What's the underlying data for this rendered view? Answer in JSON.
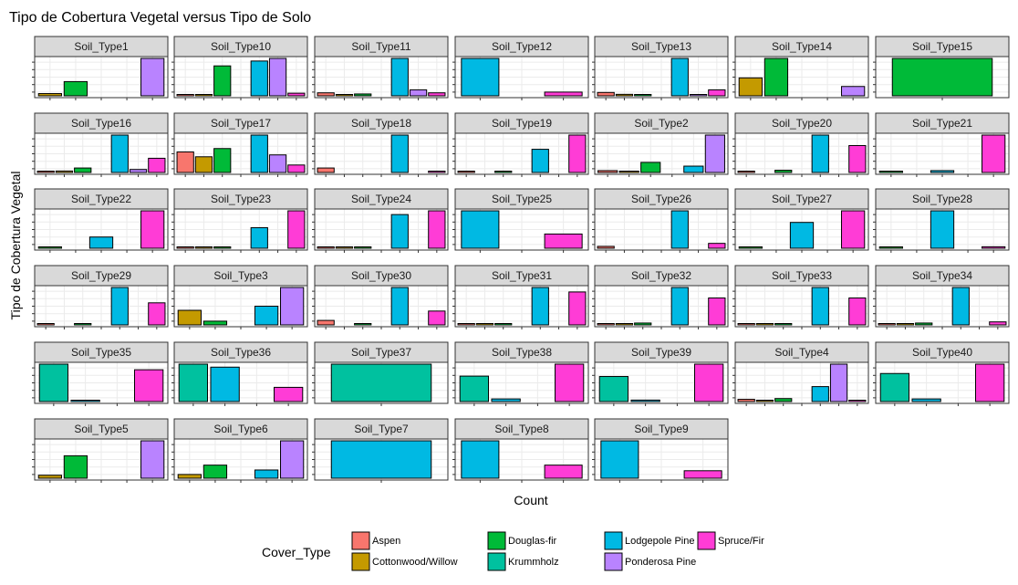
{
  "chart_data": {
    "type": "bar",
    "title": "Tipo de Cobertura Vegetal versus Tipo de Solo",
    "xlabel": "Count",
    "ylabel": "Tipo de Cobertura Vegetal",
    "legend": {
      "title": "Cover_Type",
      "placement": "bottom",
      "entries": [
        {
          "label": "Aspen",
          "color": "#F8766D"
        },
        {
          "label": "Cottonwood/Willow",
          "color": "#C49A00"
        },
        {
          "label": "Douglas-fir",
          "color": "#00BA38"
        },
        {
          "label": "Krummholz",
          "color": "#00C19F"
        },
        {
          "label": "Lodgepole Pine",
          "color": "#00B9E3"
        },
        {
          "label": "Ponderosa Pine",
          "color": "#B983FF"
        },
        {
          "label": "Spruce/Fir",
          "color": "#FF3CD6"
        }
      ]
    },
    "grid": true,
    "facet_scales": "free",
    "panels": [
      {
        "name": "Soil_Type1",
        "bars": [
          {
            "cat": 2,
            "value": 0.06
          },
          {
            "cat": 3,
            "value": 0.38
          },
          {
            "cat": 6,
            "value": 1.0
          }
        ]
      },
      {
        "name": "Soil_Type10",
        "bars": [
          {
            "cat": 1,
            "value": 0.02
          },
          {
            "cat": 2,
            "value": 0.02
          },
          {
            "cat": 3,
            "value": 0.8
          },
          {
            "cat": 5,
            "value": 0.93
          },
          {
            "cat": 6,
            "value": 1.0
          },
          {
            "cat": 7,
            "value": 0.07
          }
        ]
      },
      {
        "name": "Soil_Type11",
        "bars": [
          {
            "cat": 1,
            "value": 0.08
          },
          {
            "cat": 2,
            "value": 0.02
          },
          {
            "cat": 3,
            "value": 0.05
          },
          {
            "cat": 5,
            "value": 1.0
          },
          {
            "cat": 6,
            "value": 0.16
          },
          {
            "cat": 7,
            "value": 0.08
          }
        ]
      },
      {
        "name": "Soil_Type12",
        "bars": [
          {
            "cat": 5,
            "value": 1.0
          },
          {
            "cat": 7,
            "value": 0.1
          }
        ]
      },
      {
        "name": "Soil_Type13",
        "bars": [
          {
            "cat": 1,
            "value": 0.09
          },
          {
            "cat": 2,
            "value": 0.04
          },
          {
            "cat": 3,
            "value": 0.01
          },
          {
            "cat": 5,
            "value": 1.0
          },
          {
            "cat": 6,
            "value": 0.01
          },
          {
            "cat": 7,
            "value": 0.16
          }
        ]
      },
      {
        "name": "Soil_Type14",
        "bars": [
          {
            "cat": 2,
            "value": 0.48
          },
          {
            "cat": 3,
            "value": 1.0
          },
          {
            "cat": 6,
            "value": 0.25
          }
        ]
      },
      {
        "name": "Soil_Type15",
        "bars": [
          {
            "cat": 3,
            "value": 1.0
          }
        ]
      },
      {
        "name": "Soil_Type16",
        "bars": [
          {
            "cat": 1,
            "value": 0.02
          },
          {
            "cat": 2,
            "value": 0.04
          },
          {
            "cat": 3,
            "value": 0.12
          },
          {
            "cat": 5,
            "value": 1.0
          },
          {
            "cat": 6,
            "value": 0.08
          },
          {
            "cat": 7,
            "value": 0.38
          }
        ]
      },
      {
        "name": "Soil_Type17",
        "bars": [
          {
            "cat": 1,
            "value": 0.55
          },
          {
            "cat": 2,
            "value": 0.42
          },
          {
            "cat": 3,
            "value": 0.64
          },
          {
            "cat": 5,
            "value": 1.0
          },
          {
            "cat": 6,
            "value": 0.47
          },
          {
            "cat": 7,
            "value": 0.2
          }
        ]
      },
      {
        "name": "Soil_Type18",
        "bars": [
          {
            "cat": 1,
            "value": 0.12
          },
          {
            "cat": 5,
            "value": 1.0
          },
          {
            "cat": 7,
            "value": 0.03
          }
        ]
      },
      {
        "name": "Soil_Type19",
        "bars": [
          {
            "cat": 1,
            "value": 0.02
          },
          {
            "cat": 3,
            "value": 0.01
          },
          {
            "cat": 5,
            "value": 0.62
          },
          {
            "cat": 7,
            "value": 1.0
          }
        ]
      },
      {
        "name": "Soil_Type2",
        "bars": [
          {
            "cat": 1,
            "value": 0.05
          },
          {
            "cat": 2,
            "value": 0.02
          },
          {
            "cat": 3,
            "value": 0.27
          },
          {
            "cat": 5,
            "value": 0.17
          },
          {
            "cat": 6,
            "value": 1.0
          }
        ]
      },
      {
        "name": "Soil_Type20",
        "bars": [
          {
            "cat": 1,
            "value": 0.02
          },
          {
            "cat": 3,
            "value": 0.06
          },
          {
            "cat": 5,
            "value": 1.0
          },
          {
            "cat": 7,
            "value": 0.72
          }
        ]
      },
      {
        "name": "Soil_Type21",
        "bars": [
          {
            "cat": 3,
            "value": 0.03
          },
          {
            "cat": 5,
            "value": 0.05
          },
          {
            "cat": 7,
            "value": 1.0
          }
        ]
      },
      {
        "name": "Soil_Type22",
        "bars": [
          {
            "cat": 3,
            "value": 0.01
          },
          {
            "cat": 5,
            "value": 0.3
          },
          {
            "cat": 7,
            "value": 1.0
          }
        ]
      },
      {
        "name": "Soil_Type23",
        "bars": [
          {
            "cat": 1,
            "value": 0.02
          },
          {
            "cat": 2,
            "value": 0.01
          },
          {
            "cat": 3,
            "value": 0.02
          },
          {
            "cat": 5,
            "value": 0.55
          },
          {
            "cat": 7,
            "value": 1.0
          }
        ]
      },
      {
        "name": "Soil_Type24",
        "bars": [
          {
            "cat": 1,
            "value": 0.01
          },
          {
            "cat": 2,
            "value": 0.01
          },
          {
            "cat": 3,
            "value": 0.02
          },
          {
            "cat": 5,
            "value": 0.9
          },
          {
            "cat": 7,
            "value": 1.0
          }
        ]
      },
      {
        "name": "Soil_Type25",
        "bars": [
          {
            "cat": 5,
            "value": 1.0
          },
          {
            "cat": 7,
            "value": 0.38
          }
        ]
      },
      {
        "name": "Soil_Type26",
        "bars": [
          {
            "cat": 1,
            "value": 0.05
          },
          {
            "cat": 5,
            "value": 1.0
          },
          {
            "cat": 7,
            "value": 0.13
          }
        ]
      },
      {
        "name": "Soil_Type27",
        "bars": [
          {
            "cat": 3,
            "value": 0.03
          },
          {
            "cat": 5,
            "value": 0.69
          },
          {
            "cat": 7,
            "value": 1.0
          }
        ]
      },
      {
        "name": "Soil_Type28",
        "bars": [
          {
            "cat": 3,
            "value": 0.01
          },
          {
            "cat": 5,
            "value": 1.0
          },
          {
            "cat": 7,
            "value": 0.04
          }
        ]
      },
      {
        "name": "Soil_Type29",
        "bars": [
          {
            "cat": 1,
            "value": 0.02
          },
          {
            "cat": 3,
            "value": 0.02
          },
          {
            "cat": 5,
            "value": 1.0
          },
          {
            "cat": 7,
            "value": 0.59
          }
        ]
      },
      {
        "name": "Soil_Type3",
        "bars": [
          {
            "cat": 2,
            "value": 0.39
          },
          {
            "cat": 3,
            "value": 0.1
          },
          {
            "cat": 5,
            "value": 0.5
          },
          {
            "cat": 6,
            "value": 1.0
          }
        ]
      },
      {
        "name": "Soil_Type30",
        "bars": [
          {
            "cat": 1,
            "value": 0.12
          },
          {
            "cat": 3,
            "value": 0.02
          },
          {
            "cat": 5,
            "value": 1.0
          },
          {
            "cat": 7,
            "value": 0.37
          }
        ]
      },
      {
        "name": "Soil_Type31",
        "bars": [
          {
            "cat": 1,
            "value": 0.03
          },
          {
            "cat": 2,
            "value": 0.01
          },
          {
            "cat": 3,
            "value": 0.02
          },
          {
            "cat": 5,
            "value": 1.0
          },
          {
            "cat": 7,
            "value": 0.88
          }
        ]
      },
      {
        "name": "Soil_Type32",
        "bars": [
          {
            "cat": 1,
            "value": 0.02
          },
          {
            "cat": 2,
            "value": 0.01
          },
          {
            "cat": 3,
            "value": 0.05
          },
          {
            "cat": 5,
            "value": 1.0
          },
          {
            "cat": 7,
            "value": 0.72
          }
        ]
      },
      {
        "name": "Soil_Type33",
        "bars": [
          {
            "cat": 1,
            "value": 0.02
          },
          {
            "cat": 2,
            "value": 0.02
          },
          {
            "cat": 3,
            "value": 0.02
          },
          {
            "cat": 5,
            "value": 1.0
          },
          {
            "cat": 7,
            "value": 0.72
          }
        ]
      },
      {
        "name": "Soil_Type34",
        "bars": [
          {
            "cat": 1,
            "value": 0.01
          },
          {
            "cat": 2,
            "value": 0.01
          },
          {
            "cat": 3,
            "value": 0.05
          },
          {
            "cat": 5,
            "value": 1.0
          },
          {
            "cat": 7,
            "value": 0.08
          }
        ]
      },
      {
        "name": "Soil_Type35",
        "bars": [
          {
            "cat": 4,
            "value": 1.0
          },
          {
            "cat": 5,
            "value": 0.02
          },
          {
            "cat": 7,
            "value": 0.85
          }
        ]
      },
      {
        "name": "Soil_Type36",
        "bars": [
          {
            "cat": 4,
            "value": 1.0
          },
          {
            "cat": 5,
            "value": 0.92
          },
          {
            "cat": 7,
            "value": 0.38
          }
        ]
      },
      {
        "name": "Soil_Type37",
        "bars": [
          {
            "cat": 4,
            "value": 1.0
          }
        ]
      },
      {
        "name": "Soil_Type38",
        "bars": [
          {
            "cat": 4,
            "value": 0.68
          },
          {
            "cat": 5,
            "value": 0.07
          },
          {
            "cat": 7,
            "value": 1.0
          }
        ]
      },
      {
        "name": "Soil_Type39",
        "bars": [
          {
            "cat": 4,
            "value": 0.67
          },
          {
            "cat": 5,
            "value": 0.04
          },
          {
            "cat": 7,
            "value": 1.0
          }
        ]
      },
      {
        "name": "Soil_Type4",
        "bars": [
          {
            "cat": 1,
            "value": 0.06
          },
          {
            "cat": 2,
            "value": 0.02
          },
          {
            "cat": 3,
            "value": 0.08
          },
          {
            "cat": 5,
            "value": 0.4
          },
          {
            "cat": 6,
            "value": 1.0
          },
          {
            "cat": 7,
            "value": 0.02
          }
        ]
      },
      {
        "name": "Soil_Type40",
        "bars": [
          {
            "cat": 4,
            "value": 0.75
          },
          {
            "cat": 5,
            "value": 0.07
          },
          {
            "cat": 7,
            "value": 1.0
          }
        ]
      },
      {
        "name": "Soil_Type5",
        "bars": [
          {
            "cat": 2,
            "value": 0.08
          },
          {
            "cat": 3,
            "value": 0.6
          },
          {
            "cat": 6,
            "value": 1.0
          }
        ]
      },
      {
        "name": "Soil_Type6",
        "bars": [
          {
            "cat": 2,
            "value": 0.1
          },
          {
            "cat": 3,
            "value": 0.35
          },
          {
            "cat": 5,
            "value": 0.22
          },
          {
            "cat": 6,
            "value": 1.0
          }
        ]
      },
      {
        "name": "Soil_Type7",
        "bars": [
          {
            "cat": 5,
            "value": 1.0
          }
        ]
      },
      {
        "name": "Soil_Type8",
        "bars": [
          {
            "cat": 5,
            "value": 1.0
          },
          {
            "cat": 7,
            "value": 0.35
          }
        ]
      },
      {
        "name": "Soil_Type9",
        "bars": [
          {
            "cat": 5,
            "value": 1.0
          },
          {
            "cat": 7,
            "value": 0.2
          }
        ]
      }
    ]
  }
}
